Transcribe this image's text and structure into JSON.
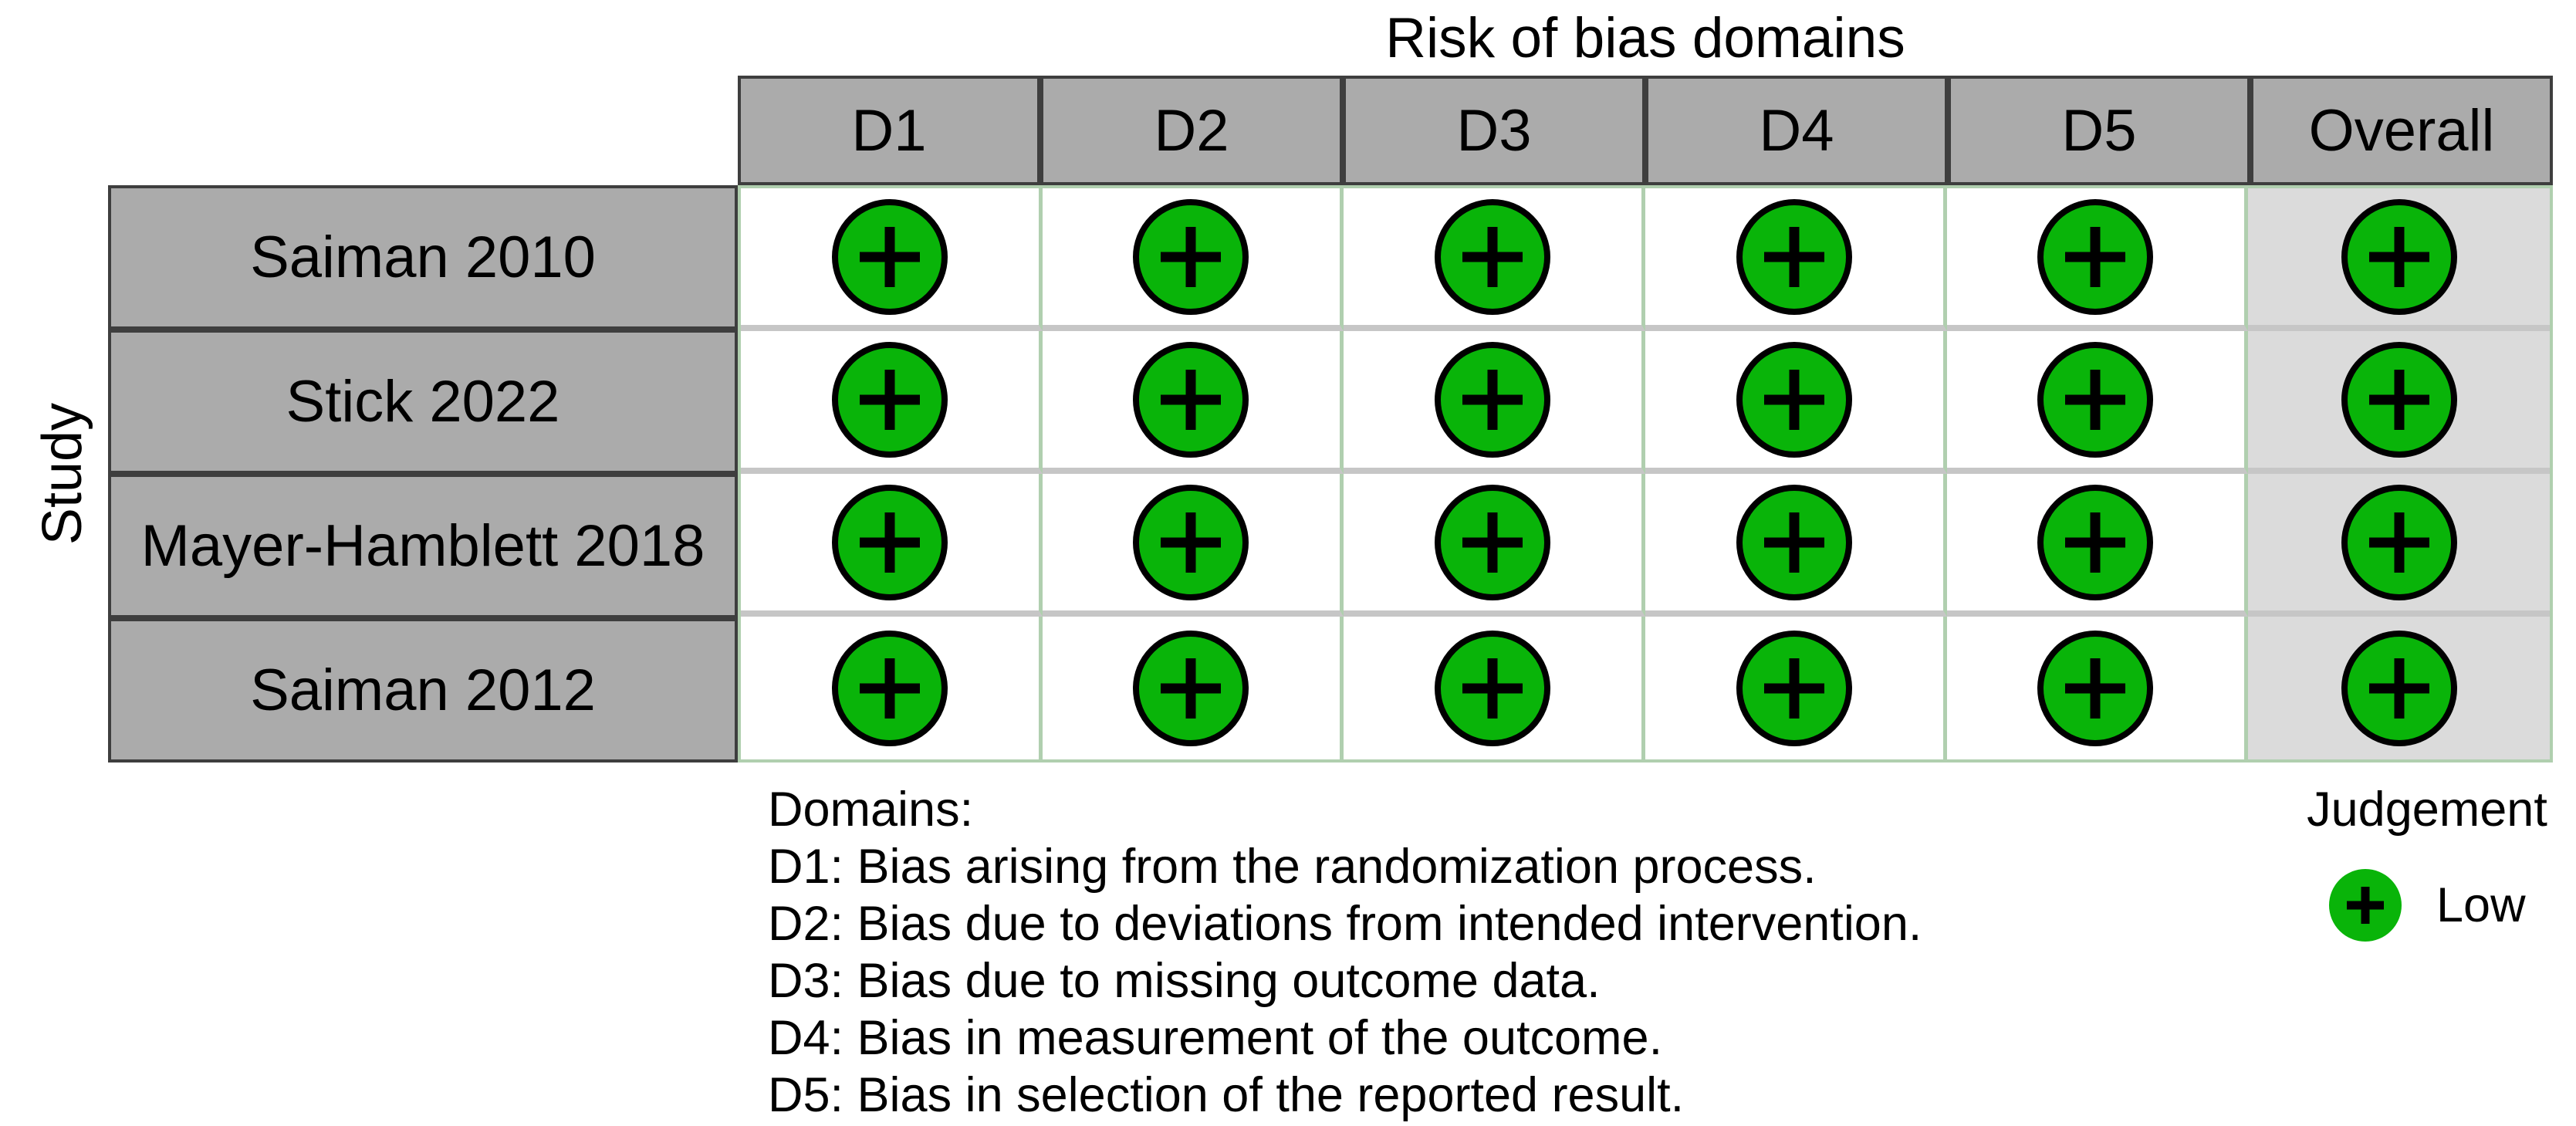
{
  "chart_data": {
    "type": "heatmap",
    "title": "Risk of bias domains",
    "ylabel": "Study",
    "x_categories": [
      "D1",
      "D2",
      "D3",
      "D4",
      "D5",
      "Overall"
    ],
    "y_categories": [
      "Saiman 2010",
      "Stick 2022",
      "Mayer-Hamblett 2018",
      "Saiman 2012"
    ],
    "values": [
      [
        "Low",
        "Low",
        "Low",
        "Low",
        "Low",
        "Low"
      ],
      [
        "Low",
        "Low",
        "Low",
        "Low",
        "Low",
        "Low"
      ],
      [
        "Low",
        "Low",
        "Low",
        "Low",
        "Low",
        "Low"
      ],
      [
        "Low",
        "Low",
        "Low",
        "Low",
        "Low",
        "Low"
      ]
    ],
    "legend": {
      "title": "Judgement",
      "entries": [
        {
          "label": "Low",
          "symbol": "+",
          "color": "#09B409"
        }
      ]
    },
    "layout": {
      "overall_column_highlighted": true,
      "grid_on": true
    }
  },
  "domains_legend": {
    "heading": "Domains:",
    "items": [
      "D1: Bias arising from the randomization process.",
      "D2: Bias due to deviations from intended intervention.",
      "D3: Bias due to missing outcome data.",
      "D4: Bias in measurement of the outcome.",
      "D5: Bias in selection of the reported result."
    ]
  },
  "colors": {
    "low_risk_green": "#09B409",
    "header_fill": "#ABABAB",
    "header_border": "#3E3E3E",
    "overall_cell_fill": "#DBDBDB",
    "vertical_gridline": "#B0CFAF",
    "horizontal_gridline": "#C6C6C6",
    "symbol_black": "#000000"
  }
}
